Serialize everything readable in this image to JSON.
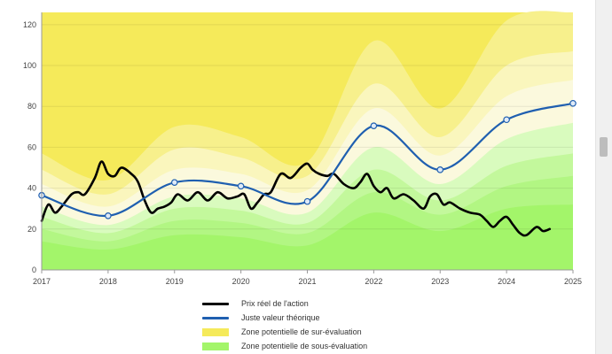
{
  "chart_data": {
    "type": "line",
    "xlim": [
      2017,
      2025
    ],
    "ylim": [
      0,
      126
    ],
    "x_ticks": [
      "2017",
      "2018",
      "2019",
      "2020",
      "2021",
      "2022",
      "2023",
      "2024",
      "2025"
    ],
    "y_ticks": [
      "0",
      "20",
      "40",
      "60",
      "80",
      "100",
      "120"
    ],
    "grid": true,
    "legend_position": "bottom",
    "legend": [
      {
        "label": "Prix réel de l'action",
        "color": "#000000",
        "kind": "line"
      },
      {
        "label": "Juste valeur théorique",
        "color": "#1f5fb0",
        "kind": "line"
      },
      {
        "label": "Zone potentielle de sur-évaluation",
        "color": "#f5ea5a",
        "kind": "area"
      },
      {
        "label": "Zone potentielle de sous-évaluation",
        "color": "#a3f56a",
        "kind": "area"
      }
    ],
    "fair_value_points": [
      {
        "x": 2017.0,
        "y": 36.5
      },
      {
        "x": 2018.0,
        "y": 26.5
      },
      {
        "x": 2019.0,
        "y": 42.8
      },
      {
        "x": 2020.0,
        "y": 41.0
      },
      {
        "x": 2021.0,
        "y": 33.5
      },
      {
        "x": 2022.0,
        "y": 70.5
      },
      {
        "x": 2023.0,
        "y": 49.0
      },
      {
        "x": 2024.0,
        "y": 73.5
      },
      {
        "x": 2025.0,
        "y": 81.5
      }
    ],
    "overvaluation_bands": [
      {
        "color": "#f5ea5a",
        "values": [
          126,
          126,
          126,
          126,
          126,
          126,
          126,
          126,
          126
        ]
      },
      {
        "color": "#f7f08c",
        "values": [
          57,
          44,
          70,
          65,
          53,
          112,
          79,
          122,
          126
        ]
      },
      {
        "color": "#faf6bd",
        "values": [
          49,
          37,
          59,
          55,
          46,
          91,
          65,
          100,
          107
        ]
      },
      {
        "color": "#fbf9dd",
        "values": [
          42,
          31,
          49,
          47,
          39,
          79,
          56,
          85,
          93
        ]
      }
    ],
    "undervaluation_bands": [
      {
        "color": "#d9fbbe",
        "values": [
          31,
          22,
          36,
          35,
          28,
          60,
          42,
          64,
          72
        ]
      },
      {
        "color": "#c3f89c",
        "values": [
          26,
          18,
          30,
          29,
          23,
          49,
          34,
          51,
          57
        ]
      },
      {
        "color": "#b2f683",
        "values": [
          20,
          14,
          24,
          23,
          18,
          38,
          27,
          41,
          46
        ]
      },
      {
        "color": "#a3f56a",
        "values": [
          14,
          10,
          17,
          16,
          12,
          28,
          19,
          30,
          32
        ]
      }
    ],
    "series": [
      {
        "name": "Prix réel de l'action",
        "color": "#000000",
        "x": [
          2017.0,
          2017.1,
          2017.2,
          2017.3,
          2017.45,
          2017.55,
          2017.65,
          2017.8,
          2017.9,
          2018.0,
          2018.1,
          2018.2,
          2018.35,
          2018.45,
          2018.55,
          2018.65,
          2018.75,
          2018.85,
          2018.95,
          2019.05,
          2019.2,
          2019.35,
          2019.5,
          2019.65,
          2019.8,
          2019.95,
          2020.05,
          2020.15,
          2020.25,
          2020.35,
          2020.45,
          2020.6,
          2020.75,
          2020.9,
          2021.0,
          2021.08,
          2021.18,
          2021.3,
          2021.4,
          2021.55,
          2021.7,
          2021.8,
          2021.9,
          2022.0,
          2022.1,
          2022.2,
          2022.3,
          2022.45,
          2022.6,
          2022.75,
          2022.85,
          2022.95,
          2023.05,
          2023.15,
          2023.3,
          2023.45,
          2023.6,
          2023.7,
          2023.8,
          2023.9,
          2024.0,
          2024.1,
          2024.2,
          2024.3,
          2024.45,
          2024.55,
          2024.65
        ],
        "values": [
          24,
          32,
          28,
          31,
          37,
          38,
          37,
          45,
          53,
          47,
          46,
          50,
          47,
          43,
          34,
          28,
          30,
          31,
          33,
          37,
          34,
          38,
          34,
          38,
          35,
          36,
          37,
          30,
          33,
          37,
          38,
          47,
          45,
          50,
          52,
          49,
          47,
          46,
          47,
          42,
          40,
          43,
          47,
          41,
          38,
          40,
          35,
          37,
          34,
          30,
          36,
          37,
          32,
          33,
          30,
          28,
          27,
          24,
          21,
          24,
          26,
          22,
          18,
          17,
          21,
          19,
          20
        ]
      },
      {
        "name": "Juste valeur théorique",
        "color": "#1f5fb0",
        "x": [
          2017,
          2018,
          2019,
          2020,
          2021,
          2022,
          2023,
          2024,
          2025
        ],
        "values": [
          36.5,
          26.5,
          42.8,
          41.0,
          33.5,
          70.5,
          49.0,
          73.5,
          81.5
        ]
      }
    ]
  }
}
